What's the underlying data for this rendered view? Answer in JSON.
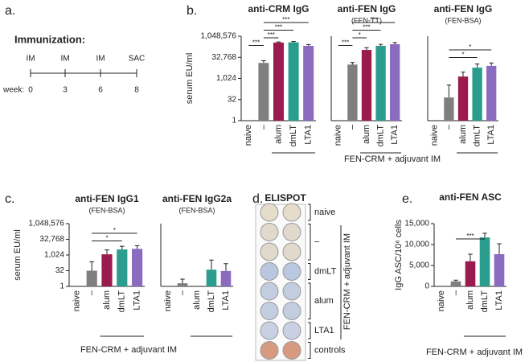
{
  "panel_labels": [
    "a.",
    "b.",
    "c.",
    "d.",
    "e."
  ],
  "timeline": {
    "title": "Immunization:",
    "events": [
      "IM",
      "IM",
      "IM",
      "SAC"
    ],
    "weeks_label": "week:",
    "weeks": [
      0,
      3,
      6,
      8
    ]
  },
  "chart_data": [
    {
      "type": "bar",
      "title": "anti-CRM IgG",
      "ylabel": "serum EU/ml",
      "categories": [
        "naive",
        "–",
        "alum",
        "dmLT",
        "LTA1"
      ],
      "values": [
        1,
        13000,
        370000,
        380000,
        215000
      ],
      "errors": [
        0,
        6000,
        40000,
        60000,
        50000
      ],
      "colors": [
        "#7f7f7f",
        "#7f7f7f",
        "#9b1b4f",
        "#2a9d8f",
        "#8a6bbf"
      ],
      "yscale": "log2",
      "ylim": [
        1,
        1048576
      ],
      "yticks": [
        1,
        32,
        {
          "value": 1024,
          "label": "1,024"
        },
        {
          "value": 32768,
          "label": "32,768"
        },
        {
          "value": 1048576,
          "label": "1,048,576"
        }
      ],
      "annotations": [
        {
          "label": "***",
          "from": 1,
          "to": 4
        },
        {
          "label": "***",
          "from": 1,
          "to": 3
        },
        {
          "label": "***",
          "from": 1,
          "to": 2
        },
        {
          "label": "***",
          "from": 0,
          "to": 1
        }
      ]
    },
    {
      "type": "bar",
      "title": "anti-FEN IgG",
      "subtitle": "(FEN-TT)",
      "xlabel": "FEN-CRM + adjuvant IM",
      "categories": [
        "naive",
        "–",
        "alum",
        "dmLT",
        "LTA1"
      ],
      "values": [
        1,
        10000,
        110000,
        215000,
        280000
      ],
      "errors": [
        0,
        4000,
        50000,
        60000,
        90000
      ],
      "colors": [
        "#7f7f7f",
        "#7f7f7f",
        "#9b1b4f",
        "#2a9d8f",
        "#8a6bbf"
      ],
      "yscale": "log2",
      "ylim": [
        1,
        1048576
      ],
      "annotations": [
        {
          "label": "***",
          "from": 1,
          "to": 4
        },
        {
          "label": "***",
          "from": 1,
          "to": 3
        },
        {
          "label": "*",
          "from": 1,
          "to": 2
        },
        {
          "label": "***",
          "from": 0,
          "to": 1
        }
      ]
    },
    {
      "type": "bar",
      "title": "anti-FEN IgG",
      "subtitle": "(FEN-BSA)",
      "categories": [
        "naive",
        "–",
        "alum",
        "dmLT",
        "LTA1"
      ],
      "values": [
        1,
        45,
        1400,
        6000,
        8000
      ],
      "errors": [
        0,
        300,
        1500,
        5000,
        5000
      ],
      "colors": [
        "#7f7f7f",
        "#7f7f7f",
        "#9b1b4f",
        "#2a9d8f",
        "#8a6bbf"
      ],
      "yscale": "log2",
      "ylim": [
        1,
        1048576
      ],
      "annotations": [
        {
          "label": "*",
          "from": 1,
          "to": 4
        },
        {
          "label": "*",
          "from": 1,
          "to": 3
        }
      ]
    },
    {
      "type": "bar",
      "title": "anti-FEN IgG1",
      "subtitle": "(FEN-BSA)",
      "ylabel": "serum EU/ml",
      "xlabel": "FEN-CRM + adjuvant IM",
      "categories": [
        "naive",
        "–",
        "alum",
        "dmLT",
        "LTA1"
      ],
      "values": [
        1,
        32,
        1200,
        3500,
        4000
      ],
      "errors": [
        0,
        200,
        2000,
        3500,
        4000
      ],
      "colors": [
        "#7f7f7f",
        "#7f7f7f",
        "#9b1b4f",
        "#2a9d8f",
        "#8a6bbf"
      ],
      "yscale": "log2",
      "ylim": [
        1,
        1048576
      ],
      "yticks": [
        1,
        32,
        {
          "value": 1024,
          "label": "1,024"
        },
        {
          "value": 32768,
          "label": "32,768"
        },
        {
          "value": 1048576,
          "label": "1,048,576"
        }
      ],
      "annotations": [
        {
          "label": "*",
          "from": 1,
          "to": 4
        },
        {
          "label": "*",
          "from": 1,
          "to": 3
        }
      ]
    },
    {
      "type": "bar",
      "title": "anti-FEN IgG2a",
      "subtitle": "(FEN-BSA)",
      "categories": [
        "naive",
        "–",
        "alum",
        "dmLT",
        "LTA1"
      ],
      "values": [
        1,
        2,
        1,
        40,
        30
      ],
      "errors": [
        0,
        3,
        0,
        300,
        120
      ],
      "colors": [
        "#7f7f7f",
        "#7f7f7f",
        "#9b1b4f",
        "#2a9d8f",
        "#8a6bbf"
      ],
      "yscale": "log2",
      "ylim": [
        1,
        1048576
      ],
      "annotations": []
    },
    {
      "type": "bar",
      "title": "anti-FEN ASC",
      "ylabel": "IgG ASC/10⁶ cells",
      "xlabel": "FEN-CRM + adjuvant IM",
      "categories": [
        "naive",
        "–",
        "alum",
        "dmLT",
        "LTA1"
      ],
      "values": [
        0,
        1200,
        6000,
        11700,
        7700
      ],
      "errors": [
        0,
        300,
        1700,
        1000,
        2500
      ],
      "colors": [
        "#7f7f7f",
        "#7f7f7f",
        "#9b1b4f",
        "#2a9d8f",
        "#8a6bbf"
      ],
      "ylim": [
        0,
        15000
      ],
      "yticks": [
        0,
        {
          "value": 5000,
          "label": "5,000"
        },
        {
          "value": 10000,
          "label": "10,000"
        },
        {
          "value": 15000,
          "label": "15,000"
        }
      ],
      "annotations": [
        {
          "label": "***",
          "from": 1,
          "to": 3
        }
      ]
    }
  ],
  "elispot": {
    "title": "ELISPOT",
    "groups": [
      "naive",
      "–",
      "dmLT",
      "alum",
      "LTA1",
      "controls"
    ],
    "side_label": "FEN-CRM + adjuvant IM"
  }
}
